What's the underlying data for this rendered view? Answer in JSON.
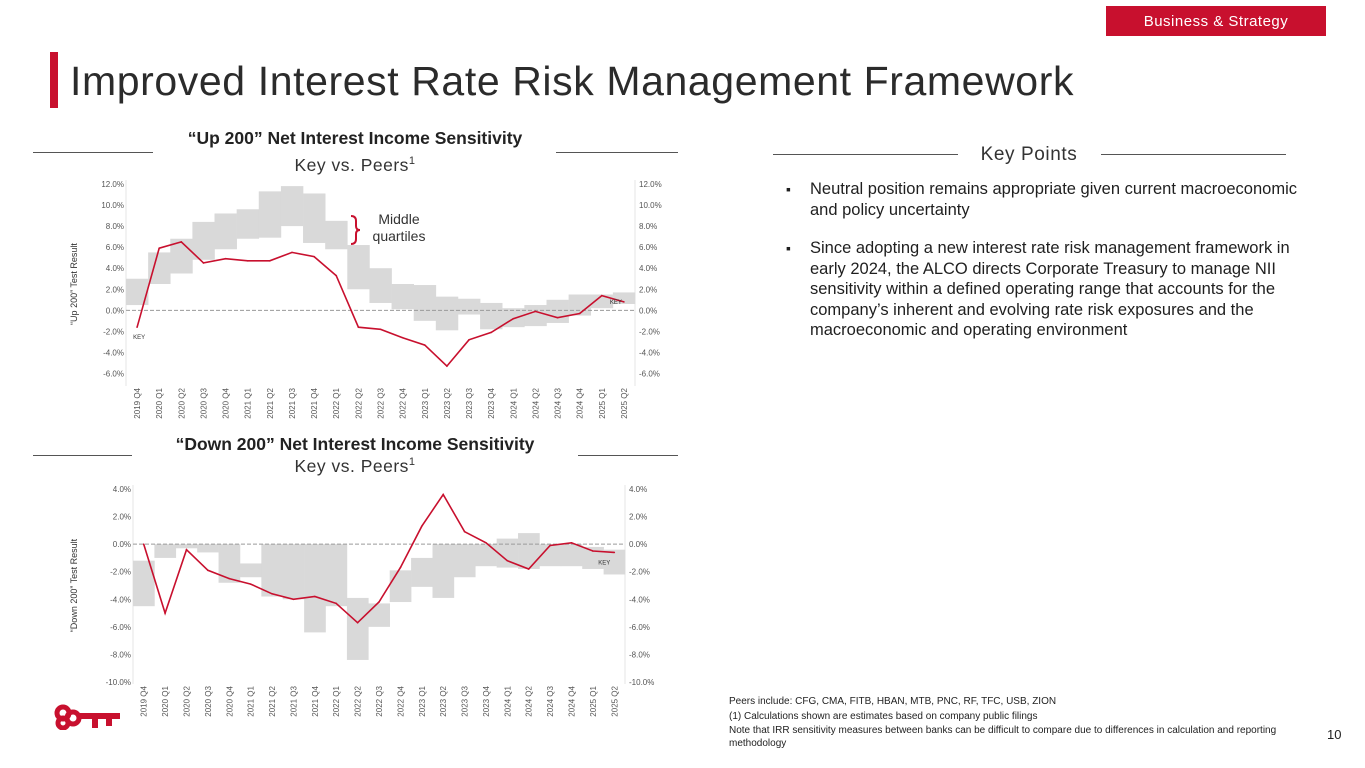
{
  "header": {
    "tag": "Business & Strategy",
    "title": "Improved Interest Rate Risk Management Framework"
  },
  "key_points": {
    "title": "Key Points",
    "items": [
      "Neutral position remains appropriate given current macroeconomic and policy uncertainty",
      "Since adopting a new interest rate risk management framework in early 2024, the ALCO directs Corporate Treasury to manage NII sensitivity within a defined operating range that accounts for the company’s inherent and evolving rate risk exposures and the macroeconomic and operating environment"
    ]
  },
  "footnotes": {
    "peers": "Peers include: CFG, CMA, FITB, HBAN, MTB, PNC, RF, TFC, USB, ZION",
    "note1": "(1) Calculations shown are estimates based on company public filings",
    "note2": "Note that IRR sensitivity measures between banks can be difficult to compare due to differences in calculation and reporting methodology"
  },
  "page_number": "10",
  "colors": {
    "brand_red": "#c8102e",
    "band_gray": "#d9d9d9",
    "line_red": "#c8102e"
  },
  "chart_data": [
    {
      "type": "line",
      "title": "“Up 200” Net Interest Income Sensitivity",
      "subtitle": "Key vs. Peers",
      "subtitle_sup": "1",
      "ylabel": "“Up 200” Test Result",
      "annotation": {
        "line1": "Middle",
        "line2": "quartiles"
      },
      "key_label": "KEY",
      "ylim": [
        -7,
        12
      ],
      "yticks": [
        -6,
        -4,
        -2,
        0,
        2,
        4,
        6,
        8,
        10,
        12
      ],
      "ytick_labels": [
        "-6.0%",
        "-4.0%",
        "-2.0%",
        "0.0%",
        "2.0%",
        "4.0%",
        "6.0%",
        "8.0%",
        "10.0%",
        "12.0%"
      ],
      "categories": [
        "2019 Q4",
        "2020 Q1",
        "2020 Q2",
        "2020 Q3",
        "2020 Q4",
        "2021 Q1",
        "2021 Q2",
        "2021 Q3",
        "2021 Q4",
        "2022 Q1",
        "2022 Q2",
        "2022 Q3",
        "2022 Q4",
        "2023 Q1",
        "2023 Q2",
        "2023 Q3",
        "2023 Q4",
        "2024 Q1",
        "2024 Q2",
        "2024 Q3",
        "2024 Q4",
        "2025 Q1",
        "2025 Q2"
      ],
      "series": [
        {
          "name": "Middle quartiles low",
          "values": [
            0.5,
            2.5,
            3.5,
            4.8,
            5.8,
            6.8,
            6.9,
            8.0,
            6.4,
            5.8,
            2.0,
            0.7,
            0.1,
            -1.0,
            -1.9,
            -0.4,
            -1.8,
            -1.6,
            -1.5,
            -1.2,
            -0.5,
            0.2,
            0.6
          ]
        },
        {
          "name": "Middle quartiles high",
          "values": [
            3.0,
            5.5,
            6.8,
            8.4,
            9.2,
            9.6,
            11.3,
            11.8,
            11.1,
            8.5,
            6.2,
            4.0,
            2.5,
            2.4,
            1.3,
            1.1,
            0.7,
            0.2,
            0.5,
            1.0,
            1.5,
            1.5,
            1.7
          ]
        },
        {
          "name": "KEY",
          "values": [
            -1.6,
            5.9,
            6.5,
            4.5,
            4.9,
            4.7,
            4.7,
            5.5,
            5.1,
            3.3,
            -1.6,
            -1.8,
            -2.6,
            -3.3,
            -5.3,
            -2.8,
            -2.1,
            -0.8,
            -0.1,
            -0.7,
            -0.3,
            1.4,
            0.8
          ]
        }
      ]
    },
    {
      "type": "line",
      "title": "“Down 200” Net Interest Income Sensitivity",
      "subtitle": "Key vs. Peers",
      "subtitle_sup": "1",
      "ylabel": "“Down 200” Test Result",
      "key_label": "KEY",
      "ylim": [
        -10,
        4
      ],
      "yticks": [
        -10,
        -8,
        -6,
        -4,
        -2,
        0,
        2,
        4
      ],
      "ytick_labels": [
        "-10.0%",
        "-8.0%",
        "-6.0%",
        "-4.0%",
        "-2.0%",
        "0.0%",
        "2.0%",
        "4.0%"
      ],
      "categories": [
        "2019 Q4",
        "2020 Q1",
        "2020 Q2",
        "2020 Q3",
        "2020 Q4",
        "2021 Q1",
        "2021 Q2",
        "2021 Q3",
        "2021 Q4",
        "2022 Q1",
        "2022 Q2",
        "2022 Q3",
        "2022 Q4",
        "2023 Q1",
        "2023 Q2",
        "2023 Q3",
        "2023 Q4",
        "2024 Q1",
        "2024 Q2",
        "2024 Q3",
        "2024 Q4",
        "2025 Q1",
        "2025 Q2"
      ],
      "series": [
        {
          "name": "Middle quartiles low",
          "values": [
            -4.5,
            -1.0,
            -0.3,
            -0.6,
            -2.8,
            -2.4,
            -3.8,
            -4.0,
            -6.4,
            -4.5,
            -8.4,
            -6.0,
            -4.2,
            -3.1,
            -3.9,
            -2.4,
            -1.6,
            -1.7,
            -1.8,
            -1.6,
            -1.6,
            -1.8,
            -2.2
          ]
        },
        {
          "name": "Middle quartiles high",
          "values": [
            -1.2,
            0.0,
            0.0,
            0.0,
            0.0,
            -1.4,
            0.0,
            0.0,
            0.0,
            0.0,
            -3.9,
            -4.3,
            -1.9,
            -1.0,
            0.0,
            0.0,
            0.0,
            0.4,
            0.8,
            0.0,
            0.0,
            -0.2,
            -0.4
          ]
        },
        {
          "name": "KEY",
          "values": [
            0.0,
            -5.0,
            -0.4,
            -1.9,
            -2.5,
            -2.9,
            -3.6,
            -4.0,
            -3.8,
            -4.3,
            -5.7,
            -4.2,
            -1.7,
            1.3,
            3.6,
            0.9,
            0.1,
            -1.2,
            -1.8,
            -0.1,
            0.1,
            -0.5,
            -0.6
          ]
        }
      ]
    }
  ]
}
